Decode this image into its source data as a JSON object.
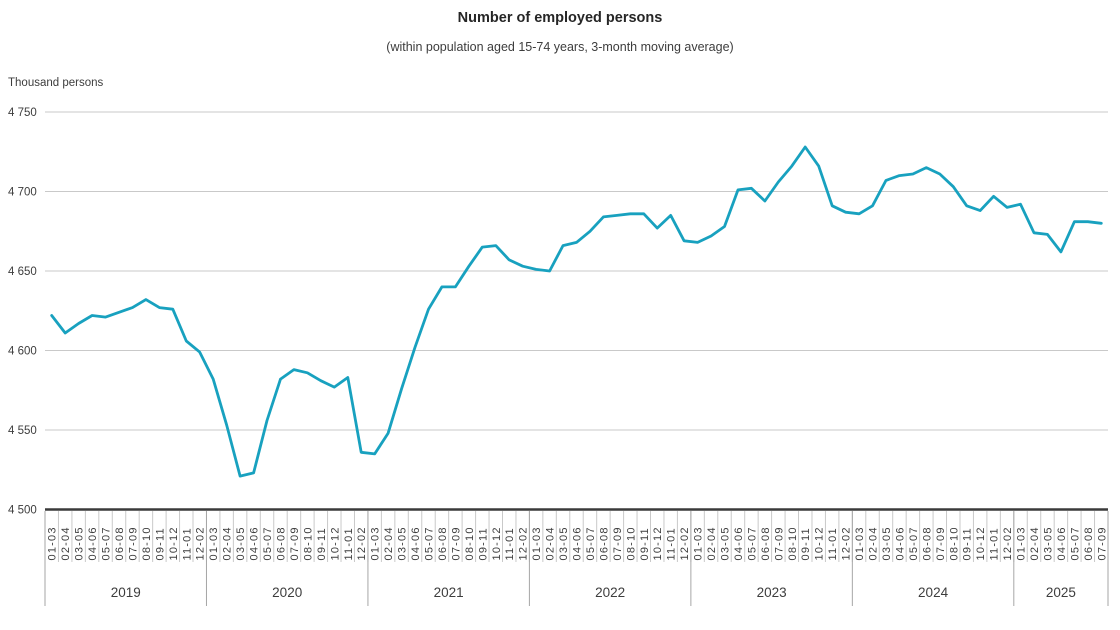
{
  "title": "Number of employed persons",
  "subtitle": "(within population aged 15-74 years, 3-month moving average)",
  "unit_label": "Thousand persons",
  "chart_data": {
    "type": "line",
    "title": "Number of employed persons",
    "subtitle": "(within population aged 15-74 years, 3-month moving average)",
    "ylabel": "Thousand persons",
    "ylim": [
      4500,
      4750
    ],
    "grid": true,
    "legend": "none",
    "line_color": "#18a1bf",
    "gridline_color": "#c9c9c9",
    "axis_line_color": "#3a3a3a",
    "text_color": "#3d3d3d",
    "y_ticks": [
      {
        "value": 4750,
        "label": "4 750"
      },
      {
        "value": 4700,
        "label": "4 700"
      },
      {
        "value": 4650,
        "label": "4 650"
      },
      {
        "value": 4600,
        "label": "4 600"
      },
      {
        "value": 4550,
        "label": "4 550"
      },
      {
        "value": 4500,
        "label": "4 500"
      }
    ],
    "groups": [
      {
        "year": "2019",
        "labels": [
          "01-03",
          "02-04",
          "03-05",
          "04-06",
          "05-07",
          "06-08",
          "07-09",
          "08-10",
          "09-11",
          "10-12",
          "11-01",
          "12-02"
        ],
        "values": [
          4622,
          4611,
          4617,
          4622,
          4621,
          4624,
          4627,
          4632,
          4627,
          4626,
          4606,
          4599
        ]
      },
      {
        "year": "2020",
        "labels": [
          "01-03",
          "02-04",
          "03-05",
          "04-06",
          "05-07",
          "06-08",
          "07-09",
          "08-10",
          "09-11",
          "10-12",
          "11-01",
          "12-02"
        ],
        "values": [
          4582,
          4553,
          4521,
          4523,
          4556,
          4582,
          4588,
          4586,
          4581,
          4577,
          4583,
          4536
        ]
      },
      {
        "year": "2021",
        "labels": [
          "01-03",
          "02-04",
          "03-05",
          "04-06",
          "05-07",
          "06-08",
          "07-09",
          "08-10",
          "09-11",
          "10-12",
          "11-01",
          "12-02"
        ],
        "values": [
          4535,
          4548,
          4576,
          4602,
          4626,
          4640,
          4640,
          4653,
          4665,
          4666,
          4657,
          4653
        ]
      },
      {
        "year": "2022",
        "labels": [
          "01-03",
          "02-04",
          "03-05",
          "04-06",
          "05-07",
          "06-08",
          "07-09",
          "08-10",
          "09-11",
          "10-12",
          "11-01",
          "12-02"
        ],
        "values": [
          4651,
          4650,
          4666,
          4668,
          4675,
          4684,
          4685,
          4686,
          4686,
          4677,
          4685,
          4669
        ]
      },
      {
        "year": "2023",
        "labels": [
          "01-03",
          "02-04",
          "03-05",
          "04-06",
          "05-07",
          "06-08",
          "07-09",
          "08-10",
          "09-11",
          "10-12",
          "11-01",
          "12-02"
        ],
        "values": [
          4668,
          4672,
          4678,
          4701,
          4702,
          4694,
          4706,
          4716,
          4728,
          4716,
          4691,
          4687
        ]
      },
      {
        "year": "2024",
        "labels": [
          "01-03",
          "02-04",
          "03-05",
          "04-06",
          "05-07",
          "06-08",
          "07-09",
          "08-10",
          "09-11",
          "10-12",
          "11-01",
          "12-02"
        ],
        "values": [
          4686,
          4691,
          4707,
          4710,
          4711,
          4715,
          4711,
          4703,
          4691,
          4688,
          4697,
          4690
        ]
      },
      {
        "year": "2025",
        "labels": [
          "01-03",
          "02-04",
          "03-05",
          "04-06",
          "05-07",
          "06-08",
          " 07-09"
        ],
        "values": [
          4692,
          4674,
          4673,
          4662,
          4681,
          4681,
          4680
        ]
      }
    ]
  }
}
